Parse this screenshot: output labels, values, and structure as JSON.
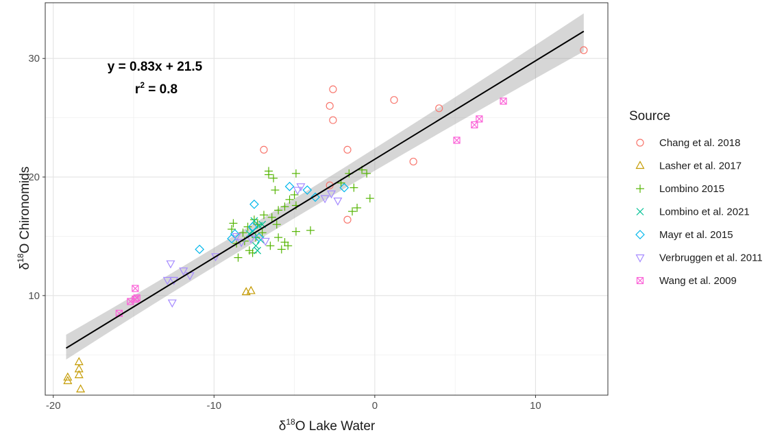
{
  "chart_data": {
    "type": "scatter",
    "xlim": [
      -20.5,
      14.5
    ],
    "ylim": [
      1.6,
      34.7
    ],
    "x_ticks": [
      -20,
      -10,
      0,
      10
    ],
    "y_ticks": [
      10,
      20,
      30
    ],
    "x_tick_labels": [
      "-20",
      "-10",
      "0",
      "10"
    ],
    "y_tick_labels": [
      "10",
      "20",
      "30"
    ],
    "xlabel": {
      "delta": "δ",
      "sup": "18",
      "text": "O Lake Water"
    },
    "ylabel": {
      "delta": "δ",
      "sup": "18",
      "text": "O Chironomids"
    },
    "grid": true,
    "equation": "y = 0.83x + 21.5",
    "r2": {
      "r": "r",
      "sup": "2",
      "rest": " = 0.8"
    },
    "regression": {
      "slope": 0.83,
      "intercept": 21.5,
      "x_range": [
        -19.2,
        13.0
      ]
    },
    "band": {
      "lower_left": 4.6,
      "upper_left": 6.7,
      "lower_right": 30.6,
      "upper_right": 33.8
    },
    "legend": {
      "title": "Source",
      "placement": "right"
    },
    "series": [
      {
        "name": "Chang et al. 2018",
        "shape": "circle",
        "color": "#F8766D",
        "points": [
          [
            -6.9,
            22.3
          ],
          [
            -2.6,
            27.4
          ],
          [
            -2.8,
            26.0
          ],
          [
            -2.6,
            24.8
          ],
          [
            -1.7,
            22.3
          ],
          [
            -2.8,
            19.3
          ],
          [
            -1.7,
            16.4
          ],
          [
            1.2,
            26.5
          ],
          [
            4.0,
            25.8
          ],
          [
            2.4,
            21.3
          ],
          [
            13.0,
            30.7
          ]
        ]
      },
      {
        "name": "Lasher et al. 2017",
        "shape": "triangle-up",
        "color": "#C49A00",
        "points": [
          [
            -19.1,
            3.1
          ],
          [
            -19.1,
            2.8
          ],
          [
            -18.4,
            4.4
          ],
          [
            -18.4,
            3.8
          ],
          [
            -18.4,
            3.3
          ],
          [
            -18.3,
            2.1
          ],
          [
            -8.0,
            10.3
          ],
          [
            -7.7,
            10.4
          ]
        ]
      },
      {
        "name": "Lombino 2015",
        "shape": "plus",
        "color": "#53B400",
        "points": [
          [
            -6.6,
            20.5
          ],
          [
            -6.3,
            19.9
          ],
          [
            -6.6,
            20.2
          ],
          [
            -4.9,
            20.3
          ],
          [
            -5.0,
            18.5
          ],
          [
            -2.1,
            19.5
          ],
          [
            -1.6,
            20.3
          ],
          [
            -1.3,
            19.1
          ],
          [
            -0.5,
            20.3
          ],
          [
            -1.1,
            17.4
          ],
          [
            -0.3,
            18.2
          ],
          [
            -1.4,
            17.1
          ],
          [
            -0.8,
            20.6
          ],
          [
            -6.2,
            18.9
          ],
          [
            -5.3,
            18.1
          ],
          [
            -5.6,
            17.5
          ],
          [
            -6.0,
            17.2
          ],
          [
            -4.9,
            17.6
          ],
          [
            -6.4,
            16.6
          ],
          [
            -6.9,
            16.8
          ],
          [
            -7.5,
            16.4
          ],
          [
            -7.9,
            15.8
          ],
          [
            -8.2,
            15.3
          ],
          [
            -8.8,
            16.1
          ],
          [
            -8.9,
            15.6
          ],
          [
            -8.1,
            14.6
          ],
          [
            -7.4,
            14.9
          ],
          [
            -7.8,
            13.8
          ],
          [
            -7.6,
            13.6
          ],
          [
            -8.5,
            13.2
          ],
          [
            -6.5,
            14.2
          ],
          [
            -6.0,
            14.9
          ],
          [
            -5.6,
            14.5
          ],
          [
            -5.4,
            14.2
          ],
          [
            -4.9,
            15.4
          ],
          [
            -4.0,
            15.5
          ],
          [
            -6.1,
            16.0
          ],
          [
            -5.8,
            13.9
          ],
          [
            -7.0,
            15.3
          ],
          [
            -7.3,
            16.0
          ],
          [
            -8.6,
            14.4
          ]
        ]
      },
      {
        "name": "Lombino et al. 2021",
        "shape": "cross",
        "color": "#00C094",
        "points": [
          [
            -7.5,
            16.3
          ],
          [
            -7.2,
            15.9
          ],
          [
            -7.6,
            15.4
          ],
          [
            -7.8,
            15.2
          ],
          [
            -7.1,
            14.7
          ],
          [
            -7.4,
            14.2
          ],
          [
            -7.3,
            13.8
          ],
          [
            -7.0,
            16.0
          ]
        ]
      },
      {
        "name": "Mayr et al. 2015",
        "shape": "diamond",
        "color": "#00B6EB",
        "points": [
          [
            -10.9,
            13.9
          ],
          [
            -8.9,
            14.8
          ],
          [
            -8.7,
            15.2
          ],
          [
            -7.5,
            17.7
          ],
          [
            -5.3,
            19.2
          ],
          [
            -4.2,
            18.9
          ],
          [
            -3.7,
            18.3
          ],
          [
            -1.9,
            19.1
          ],
          [
            -7.6,
            15.8
          ],
          [
            -7.2,
            14.9
          ]
        ]
      },
      {
        "name": "Verbruggen et al. 2011",
        "shape": "triangle-down",
        "color": "#A58AFF",
        "points": [
          [
            -12.7,
            12.7
          ],
          [
            -12.9,
            11.3
          ],
          [
            -12.5,
            11.3
          ],
          [
            -11.9,
            12.1
          ],
          [
            -11.5,
            11.7
          ],
          [
            -12.6,
            9.4
          ],
          [
            -9.9,
            13.3
          ],
          [
            -8.3,
            14.5
          ],
          [
            -7.7,
            14.8
          ],
          [
            -6.8,
            14.6
          ],
          [
            -4.6,
            19.2
          ],
          [
            -3.1,
            18.2
          ],
          [
            -2.7,
            18.6
          ],
          [
            -2.3,
            18.0
          ],
          [
            -4.8,
            18.9
          ],
          [
            -8.6,
            15.0
          ]
        ]
      },
      {
        "name": "Wang et al. 2009",
        "shape": "square-cross",
        "color": "#FB61D7",
        "points": [
          [
            -15.9,
            8.5
          ],
          [
            -15.2,
            9.5
          ],
          [
            -14.9,
            9.7
          ],
          [
            -14.9,
            10.6
          ],
          [
            -14.8,
            9.8
          ],
          [
            5.1,
            23.1
          ],
          [
            6.2,
            24.4
          ],
          [
            6.5,
            24.9
          ],
          [
            8.0,
            26.4
          ]
        ]
      }
    ]
  }
}
